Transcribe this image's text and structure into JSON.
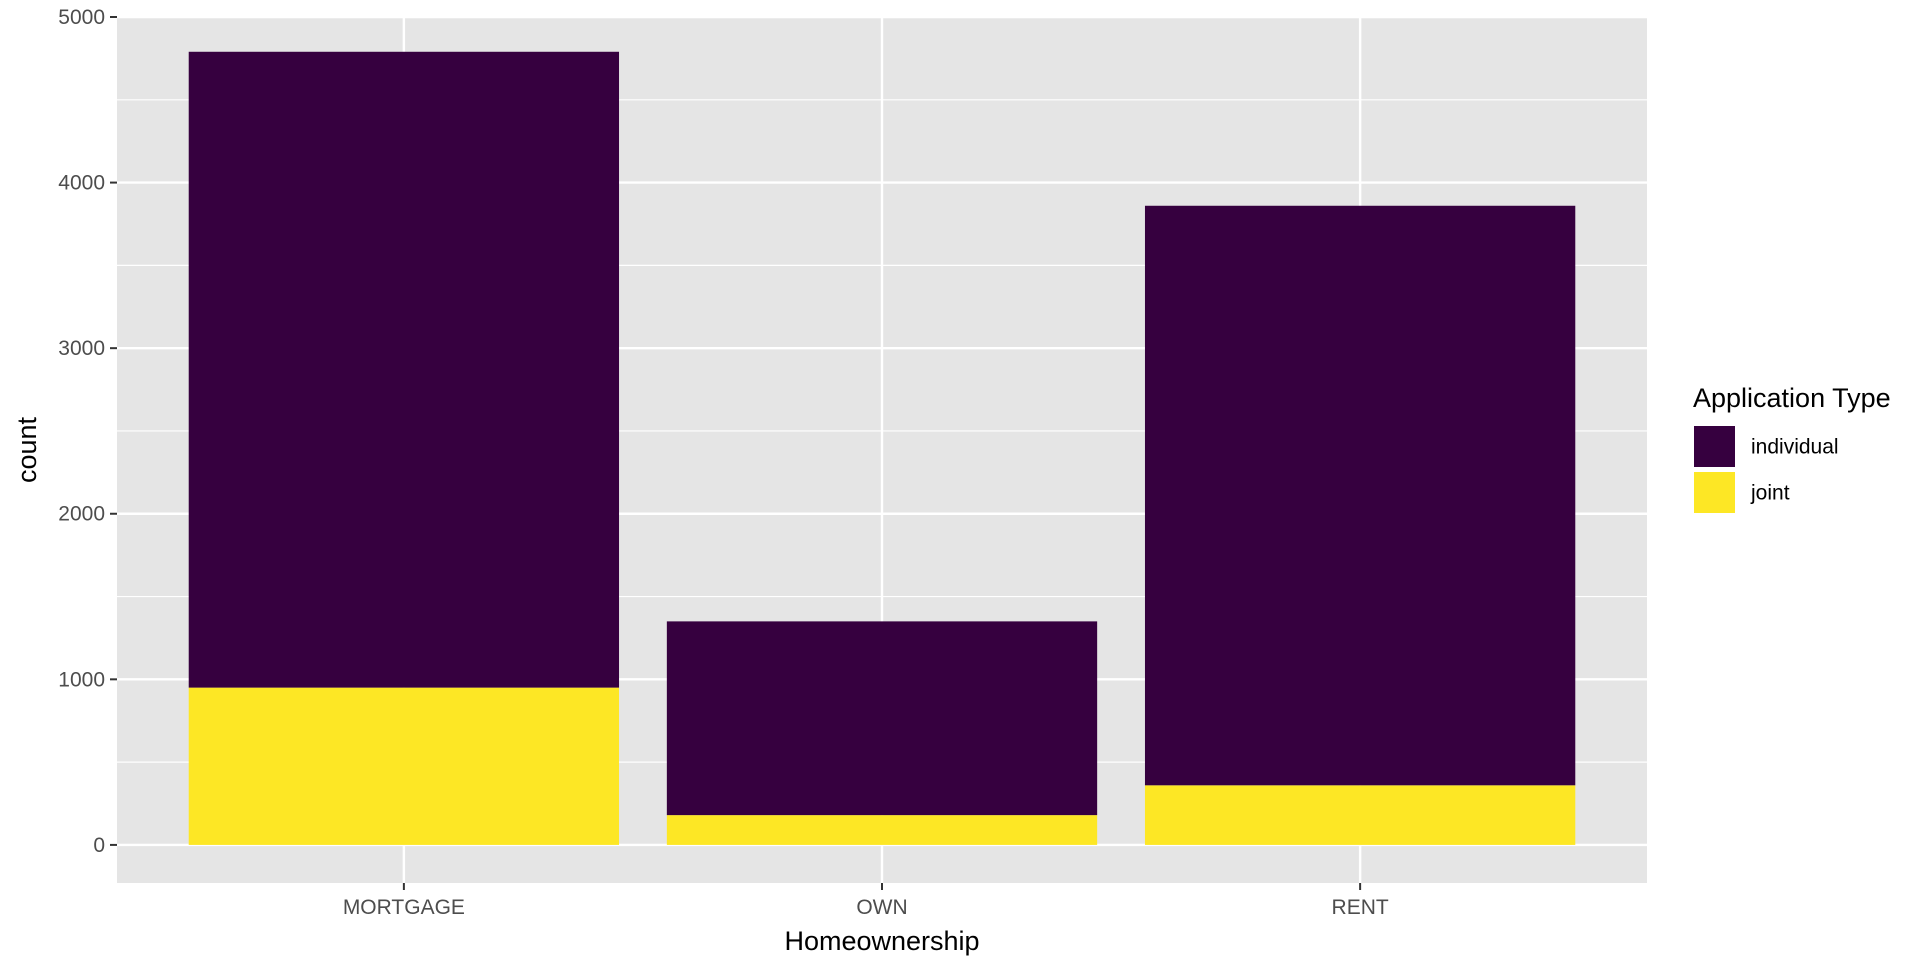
{
  "chart_data": {
    "type": "bar",
    "stacked": true,
    "categories": [
      "MORTGAGE",
      "OWN",
      "RENT"
    ],
    "series": [
      {
        "name": "joint",
        "values": [
          950,
          180,
          360
        ],
        "color": "#FDE725"
      },
      {
        "name": "individual",
        "values": [
          3840,
          1170,
          3500
        ],
        "color": "#36003F"
      }
    ],
    "xlabel": "Homeownership",
    "ylabel": "count",
    "ylim": [
      -230,
      5000
    ],
    "yticks": [
      0,
      1000,
      2000,
      3000,
      4000,
      5000
    ],
    "grid": true,
    "legend": {
      "title": "Application Type",
      "position": "right",
      "items": [
        {
          "label": "individual",
          "color": "#36003F"
        },
        {
          "label": "joint",
          "color": "#FDE725"
        }
      ]
    },
    "panel_background": "#E5E5E5",
    "grid_color": "#FFFFFF"
  }
}
